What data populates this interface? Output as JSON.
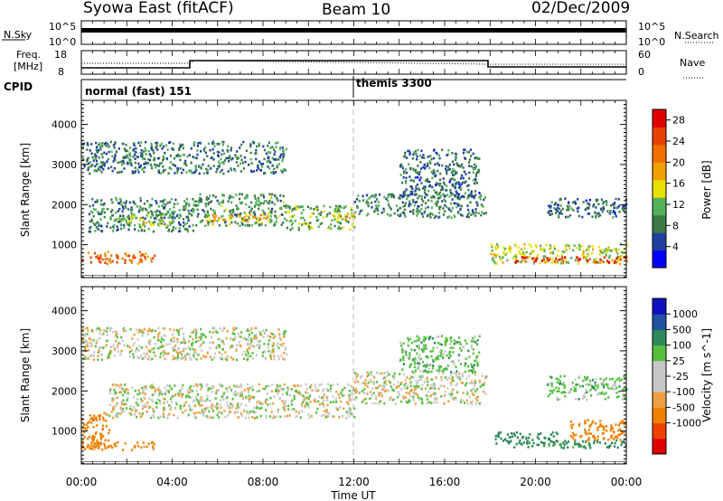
{
  "header": {
    "station": "Syowa East (fitACF)",
    "beam": "Beam 10",
    "date": "02/Dec/2009"
  },
  "status_panels": {
    "nsky": {
      "label": "N.Sky",
      "tick_top": "10^5",
      "tick_bottom": "10^0",
      "right_label": "N.Search",
      "right_tick_top": "10^5",
      "right_tick_bottom": "10^0"
    },
    "freq": {
      "label_line1": "Freq.",
      "label_line2": "[MHz]",
      "tick_top": "18",
      "tick_bottom": "8",
      "right_label": "Nave",
      "right_tick_top": "60",
      "right_tick_bottom": "0"
    },
    "cpid": {
      "label": "CPID",
      "modes": [
        {
          "name": "normal (fast) 151",
          "start_hour": 0
        },
        {
          "name": "themis 3300",
          "start_hour": 12
        }
      ]
    }
  },
  "colors": {
    "power_scale": [
      "#0000ff",
      "#1e3fa0",
      "#3b7a46",
      "#55b05a",
      "#e8e000",
      "#f0a000",
      "#f07000",
      "#e84000",
      "#e00000"
    ],
    "velocity_scale": [
      "#e00000",
      "#f04000",
      "#f08000",
      "#f0a040",
      "#c8c8c8",
      "#c8c8c8",
      "#55c040",
      "#2e8a5a",
      "#2050a0",
      "#1010c0"
    ],
    "grey_band": "#c8c8c8"
  },
  "chart_data": [
    {
      "type": "heatmap",
      "panel": "power",
      "xlabel": "",
      "ylabel": "Slant Range [km]",
      "x_ticks": [
        "00:00",
        "04:00",
        "08:00",
        "12:00",
        "16:00",
        "20:00",
        "00:00"
      ],
      "xlim_hours": [
        0,
        24
      ],
      "y_ticks": [
        "1000",
        "2000",
        "3000",
        "4000"
      ],
      "ylim_km": [
        180,
        4600
      ],
      "colorbar": {
        "label": "Power [dB]",
        "ticks": [
          "4",
          "8",
          "12",
          "16",
          "20",
          "24",
          "28"
        ],
        "range": [
          0,
          30
        ]
      },
      "echo_bands": [
        {
          "t0": 0.0,
          "t1": 3.2,
          "r0": 550,
          "r1": 850,
          "value": 22
        },
        {
          "t0": 0.3,
          "t1": 5.0,
          "r0": 1350,
          "r1": 2200,
          "value": 9
        },
        {
          "t0": 1.5,
          "t1": 4.0,
          "r0": 1500,
          "r1": 1800,
          "value": 13
        },
        {
          "t0": 5.0,
          "t1": 9.0,
          "r0": 1500,
          "r1": 2300,
          "value": 10
        },
        {
          "t0": 5.5,
          "t1": 8.5,
          "r0": 1600,
          "r1": 1800,
          "value": 18
        },
        {
          "t0": 9.0,
          "t1": 12.0,
          "r0": 1400,
          "r1": 2000,
          "value": 11
        },
        {
          "t0": 11.0,
          "t1": 12.0,
          "r0": 1650,
          "r1": 1800,
          "value": 17
        },
        {
          "t0": 12.0,
          "t1": 17.8,
          "r0": 1700,
          "r1": 2300,
          "value": 9
        },
        {
          "t0": 14.0,
          "t1": 17.5,
          "r0": 2200,
          "r1": 3400,
          "value": 7
        },
        {
          "t0": 18.0,
          "t1": 24.0,
          "r0": 550,
          "r1": 1050,
          "value": 14
        },
        {
          "t0": 19.0,
          "t1": 24.0,
          "r0": 580,
          "r1": 720,
          "value": 26
        },
        {
          "t0": 20.5,
          "t1": 24.0,
          "r0": 1700,
          "r1": 2200,
          "value": 7
        },
        {
          "t0": 0.0,
          "t1": 9.0,
          "r0": 2800,
          "r1": 3600,
          "value": 8
        }
      ]
    },
    {
      "type": "heatmap",
      "panel": "velocity",
      "xlabel": "Time UT",
      "ylabel": "Slant Range [km]",
      "x_ticks": [
        "00:00",
        "04:00",
        "08:00",
        "12:00",
        "16:00",
        "20:00",
        "00:00"
      ],
      "xlim_hours": [
        0,
        24
      ],
      "y_ticks": [
        "1000",
        "2000",
        "3000",
        "4000"
      ],
      "ylim_km": [
        180,
        4600
      ],
      "colorbar": {
        "label": "Velocity [m s^-1]",
        "ticks": [
          "1000",
          "500",
          "100",
          "25",
          "-25",
          "-100",
          "-500",
          "-1000"
        ]
      },
      "echo_bands": [
        {
          "t0": 0.0,
          "t1": 1.2,
          "r0": 600,
          "r1": 1500,
          "value": -450
        },
        {
          "t0": 0.0,
          "t1": 3.2,
          "r0": 550,
          "r1": 750,
          "value": -120
        },
        {
          "t0": 1.2,
          "t1": 12.0,
          "r0": 1350,
          "r1": 2200,
          "value": 0
        },
        {
          "t0": 12.0,
          "t1": 17.8,
          "r0": 1700,
          "r1": 2500,
          "value": 0
        },
        {
          "t0": 14.0,
          "t1": 17.5,
          "r0": 2500,
          "r1": 3400,
          "value": 60
        },
        {
          "t0": 18.2,
          "t1": 21.0,
          "r0": 700,
          "r1": 1000,
          "value": 300
        },
        {
          "t0": 19.0,
          "t1": 24.0,
          "r0": 600,
          "r1": 800,
          "value": 150
        },
        {
          "t0": 21.5,
          "t1": 24.0,
          "r0": 800,
          "r1": 1300,
          "value": -300
        },
        {
          "t0": 20.5,
          "t1": 24.0,
          "r0": 1800,
          "r1": 2400,
          "value": 60
        },
        {
          "t0": 0.0,
          "t1": 9.0,
          "r0": 2800,
          "r1": 3600,
          "value": 0
        }
      ]
    }
  ]
}
